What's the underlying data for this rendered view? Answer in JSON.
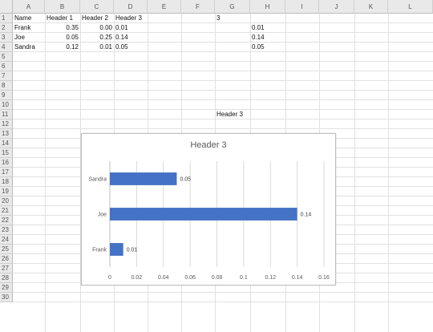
{
  "columns": [
    "A",
    "B",
    "C",
    "D",
    "E",
    "F",
    "G",
    "H",
    "I",
    "J",
    "K",
    "L"
  ],
  "rows": [
    "1",
    "2",
    "3",
    "4",
    "5",
    "6",
    "7",
    "8",
    "9",
    "10",
    "11",
    "12",
    "13",
    "14",
    "15",
    "16",
    "17",
    "18",
    "19",
    "20",
    "21",
    "22",
    "23",
    "24",
    "25",
    "26",
    "27",
    "28",
    "29",
    "30"
  ],
  "table": {
    "headers": [
      "Name",
      "Header 1",
      "Header 2",
      "Header 3"
    ],
    "rows": [
      {
        "name": "Frank",
        "h1": "0.35",
        "h2": "0.00",
        "h3": "0.01"
      },
      {
        "name": "Joe",
        "h1": "0.05",
        "h2": "0.25",
        "h3": "0.14"
      },
      {
        "name": "Sandra",
        "h1": "0.12",
        "h2": "0.01",
        "h3": "0.05"
      }
    ]
  },
  "side": {
    "g1": "3",
    "h_values": [
      "0.01",
      "0.14",
      "0.05"
    ],
    "g10": "Header 3"
  },
  "chart_data": {
    "type": "bar",
    "orientation": "horizontal",
    "title": "Header 3",
    "categories": [
      "Sandra",
      "Joe",
      "Frank"
    ],
    "values": [
      0.05,
      0.14,
      0.01
    ],
    "data_labels": [
      "0.05",
      "0.14",
      "0.01"
    ],
    "xlim": [
      0,
      0.16
    ],
    "xticks": [
      "0",
      "0.02",
      "0.04",
      "0.06",
      "0.08",
      "0.1",
      "0.12",
      "0.14",
      "0.16"
    ],
    "grid": true,
    "color": "#4472c4"
  }
}
